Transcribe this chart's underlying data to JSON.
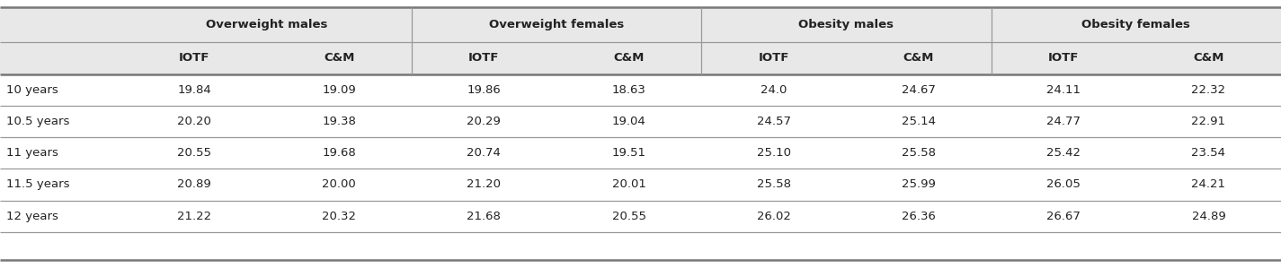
{
  "col_groups": [
    {
      "label": "Overweight males",
      "span": 2
    },
    {
      "label": "Overweight females",
      "span": 2
    },
    {
      "label": "Obesity males",
      "span": 2
    },
    {
      "label": "Obesity females",
      "span": 2
    }
  ],
  "sub_headers": [
    "IOTF",
    "C&M",
    "IOTF",
    "C&M",
    "IOTF",
    "C&M",
    "IOTF",
    "C&M"
  ],
  "row_labels": [
    "10 years",
    "10.5 years",
    "11 years",
    "11.5 years",
    "12 years"
  ],
  "data": [
    [
      "19.84",
      "19.09",
      "19.86",
      "18.63",
      "24.0",
      "24.67",
      "24.11",
      "22.32"
    ],
    [
      "20.20",
      "19.38",
      "20.29",
      "19.04",
      "24.57",
      "25.14",
      "24.77",
      "22.91"
    ],
    [
      "20.55",
      "19.68",
      "20.74",
      "19.51",
      "25.10",
      "25.58",
      "25.42",
      "23.54"
    ],
    [
      "20.89",
      "20.00",
      "21.20",
      "20.01",
      "25.58",
      "25.99",
      "26.05",
      "24.21"
    ],
    [
      "21.22",
      "20.32",
      "21.68",
      "20.55",
      "26.02",
      "26.36",
      "26.67",
      "24.89"
    ]
  ],
  "background_color": "#ffffff",
  "header_bg": "#e8e8e8",
  "line_color": "#999999",
  "thick_line_color": "#777777",
  "text_color": "#222222",
  "font_size": 9.5,
  "header_font_size": 9.5,
  "fig_width": 14.25,
  "fig_height": 2.99,
  "dpi": 100
}
